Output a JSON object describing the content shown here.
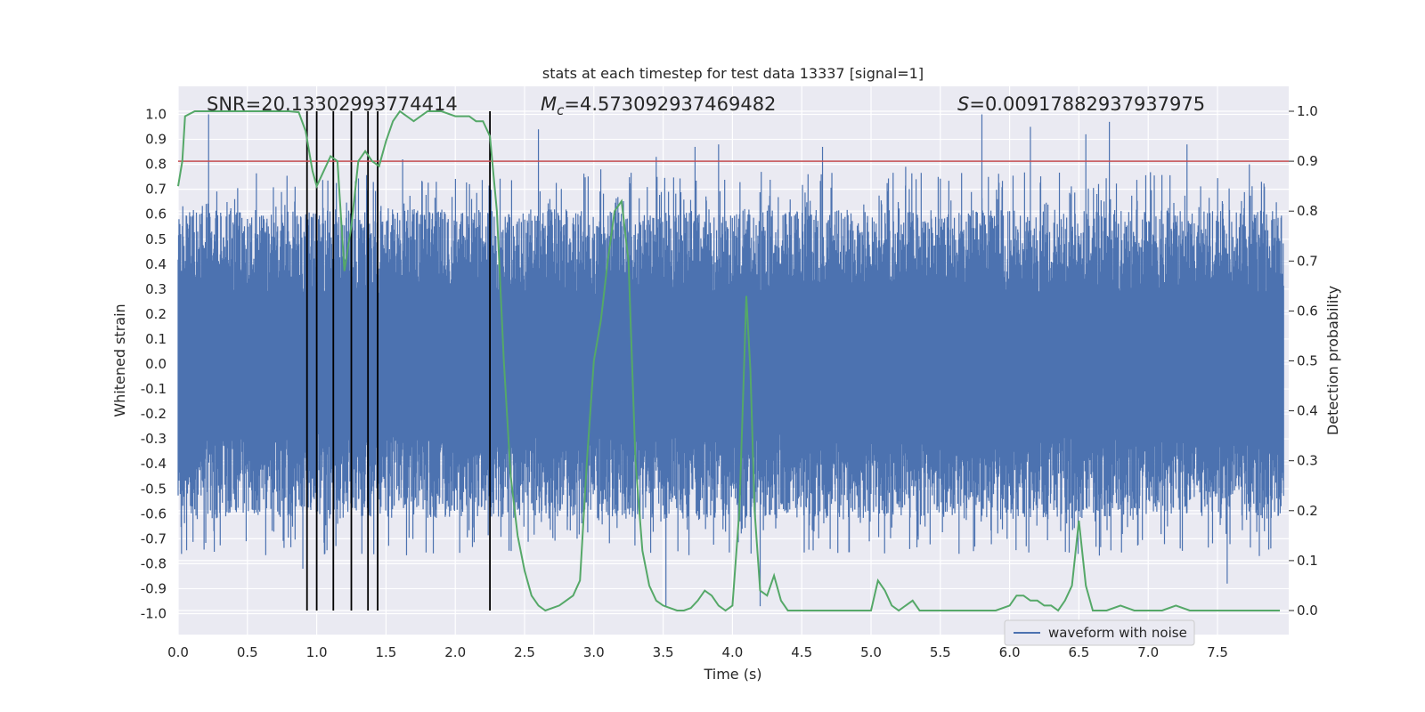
{
  "chart_data": {
    "type": "line",
    "title": "stats at each timestep for test data 13337 [signal=1]",
    "xlabel": "Time (s)",
    "ylabel": "Whitened strain",
    "y2label": "Detection probability",
    "xlim": [
      0.0,
      8.0
    ],
    "ylim": [
      -1.07,
      1.1
    ],
    "y2lim": [
      -0.045,
      1.045
    ],
    "xticks": [
      "0.0",
      "0.5",
      "1.0",
      "1.5",
      "2.0",
      "2.5",
      "3.0",
      "3.5",
      "4.0",
      "4.5",
      "5.0",
      "5.5",
      "6.0",
      "6.5",
      "7.0",
      "7.5"
    ],
    "yticks": [
      "1.0",
      "0.9",
      "0.8",
      "0.7",
      "0.6",
      "0.5",
      "0.4",
      "0.3",
      "0.2",
      "0.1",
      "0.0",
      "-0.1",
      "-0.2",
      "-0.3",
      "-0.4",
      "-0.5",
      "-0.6",
      "-0.7",
      "-0.8",
      "-0.9",
      "-1.0"
    ],
    "y2ticks": [
      "1.0",
      "0.9",
      "0.8",
      "0.7",
      "0.6",
      "0.5",
      "0.4",
      "0.3",
      "0.2",
      "0.1",
      "0.0"
    ],
    "annotations": {
      "snr": "SNR=20.13302993774414",
      "mc_symbol": "M",
      "mc_sub": "c",
      "mc_value": "=4.573092937469482",
      "s_symbol": "S",
      "s_value": "=0.00917882937937975"
    },
    "grid": true,
    "legend": {
      "position": "bottom-right",
      "entries": [
        "waveform with noise"
      ]
    },
    "colors": {
      "background": "#eaeaf2",
      "waveform": "#4c72b0",
      "probability": "#55a868",
      "threshold": "#c44e52",
      "markers": "#000000",
      "grid": "#ffffff"
    },
    "threshold_y2": 0.9,
    "marker_times": [
      0.93,
      1.0,
      1.12,
      1.25,
      1.37,
      1.44,
      2.25
    ],
    "series": [
      {
        "name": "waveform with noise",
        "envelope_typical": 0.62,
        "spikes": [
          {
            "x": 0.22,
            "y": 1.0
          },
          {
            "x": 0.9,
            "y": -0.82
          },
          {
            "x": 1.62,
            "y": 0.82
          },
          {
            "x": 2.6,
            "y": 0.94
          },
          {
            "x": 3.05,
            "y": 0.78
          },
          {
            "x": 3.45,
            "y": 0.83
          },
          {
            "x": 3.52,
            "y": -0.97
          },
          {
            "x": 3.73,
            "y": 0.87
          },
          {
            "x": 3.9,
            "y": 0.88
          },
          {
            "x": 4.2,
            "y": -0.97
          },
          {
            "x": 4.65,
            "y": 0.87
          },
          {
            "x": 5.25,
            "y": 0.79
          },
          {
            "x": 5.8,
            "y": 1.0
          },
          {
            "x": 6.15,
            "y": 0.95
          },
          {
            "x": 6.55,
            "y": 0.92
          },
          {
            "x": 6.72,
            "y": 0.97
          },
          {
            "x": 7.28,
            "y": 0.88
          },
          {
            "x": 7.57,
            "y": -0.88
          },
          {
            "x": 7.73,
            "y": 0.8
          }
        ]
      },
      {
        "name": "",
        "axis": "y2",
        "x": [
          0.0,
          0.03,
          0.05,
          0.12,
          0.2,
          0.4,
          0.6,
          0.8,
          0.87,
          0.92,
          0.97,
          1.0,
          1.05,
          1.1,
          1.15,
          1.2,
          1.25,
          1.3,
          1.35,
          1.4,
          1.45,
          1.5,
          1.55,
          1.6,
          1.65,
          1.7,
          1.75,
          1.8,
          1.9,
          2.0,
          2.05,
          2.1,
          2.15,
          2.2,
          2.25,
          2.3,
          2.35,
          2.4,
          2.45,
          2.5,
          2.55,
          2.6,
          2.65,
          2.7,
          2.75,
          2.8,
          2.85,
          2.9,
          2.95,
          3.0,
          3.05,
          3.1,
          3.15,
          3.2,
          3.25,
          3.3,
          3.35,
          3.4,
          3.45,
          3.5,
          3.55,
          3.6,
          3.65,
          3.7,
          3.75,
          3.8,
          3.85,
          3.9,
          3.95,
          4.0,
          4.05,
          4.1,
          4.13,
          4.16,
          4.2,
          4.25,
          4.3,
          4.35,
          4.4,
          4.45,
          4.5,
          4.6,
          4.7,
          4.8,
          4.9,
          5.0,
          5.05,
          5.1,
          5.15,
          5.2,
          5.25,
          5.3,
          5.35,
          5.4,
          5.5,
          5.6,
          5.7,
          5.8,
          5.9,
          6.0,
          6.05,
          6.1,
          6.15,
          6.2,
          6.25,
          6.3,
          6.35,
          6.4,
          6.45,
          6.5,
          6.55,
          6.6,
          6.65,
          6.7,
          6.8,
          6.9,
          7.0,
          7.1,
          7.2,
          7.3,
          7.4,
          7.5,
          7.6,
          7.7,
          7.8,
          7.95
        ],
        "y": [
          0.85,
          0.9,
          0.99,
          1.0,
          1.0,
          1.0,
          1.0,
          1.0,
          0.998,
          0.96,
          0.88,
          0.85,
          0.88,
          0.91,
          0.9,
          0.68,
          0.77,
          0.9,
          0.92,
          0.9,
          0.89,
          0.94,
          0.98,
          1.0,
          0.99,
          0.98,
          0.99,
          1.0,
          1.0,
          0.99,
          0.99,
          0.99,
          0.98,
          0.98,
          0.95,
          0.8,
          0.5,
          0.27,
          0.15,
          0.08,
          0.03,
          0.01,
          0.0,
          0.005,
          0.01,
          0.02,
          0.03,
          0.06,
          0.3,
          0.5,
          0.58,
          0.7,
          0.8,
          0.82,
          0.7,
          0.3,
          0.12,
          0.05,
          0.02,
          0.01,
          0.005,
          0.0,
          0.0,
          0.005,
          0.02,
          0.04,
          0.03,
          0.01,
          0.0,
          0.01,
          0.2,
          0.63,
          0.48,
          0.2,
          0.04,
          0.03,
          0.07,
          0.02,
          0.0,
          0.0,
          0.0,
          0.0,
          0.0,
          0.0,
          0.0,
          0.0,
          0.06,
          0.04,
          0.01,
          0.0,
          0.01,
          0.02,
          0.0,
          0.0,
          0.0,
          0.0,
          0.0,
          0.0,
          0.0,
          0.01,
          0.03,
          0.03,
          0.02,
          0.02,
          0.01,
          0.01,
          0.0,
          0.02,
          0.05,
          0.18,
          0.05,
          0.0,
          0.0,
          0.0,
          0.01,
          0.0,
          0.0,
          0.0,
          0.01,
          0.0,
          0.0,
          0.0,
          0.0,
          0.0,
          0.0,
          0.0
        ]
      }
    ]
  }
}
